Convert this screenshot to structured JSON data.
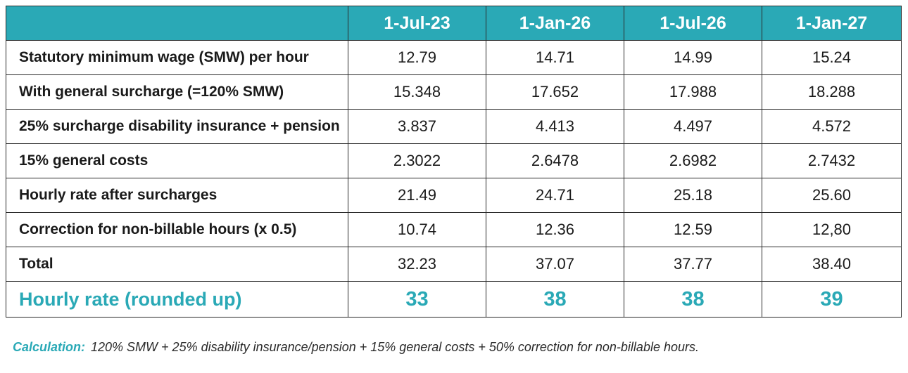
{
  "table": {
    "columns": [
      "",
      "1-Jul-23",
      "1-Jan-26",
      "1-Jul-26",
      "1-Jan-27"
    ],
    "rows": [
      {
        "label": "Statutory minimum wage (SMW) per hour",
        "values": [
          "12.79",
          "14.71",
          "14.99",
          "15.24"
        ]
      },
      {
        "label": "With general surcharge (=120% SMW)",
        "values": [
          "15.348",
          "17.652",
          "17.988",
          "18.288"
        ]
      },
      {
        "label": "25% surcharge disability insurance + pension",
        "values": [
          "3.837",
          "4.413",
          "4.497",
          "4.572"
        ]
      },
      {
        "label": "15% general costs",
        "values": [
          "2.3022",
          "2.6478",
          "2.6982",
          "2.7432"
        ]
      },
      {
        "label": "Hourly rate after surcharges",
        "values": [
          "21.49",
          "24.71",
          "25.18",
          "25.60"
        ]
      },
      {
        "label": "Correction for non-billable hours (x 0.5)",
        "values": [
          "10.74",
          "12.36",
          "12.59",
          "12,80"
        ]
      },
      {
        "label": "Total",
        "values": [
          "32.23",
          "37.07",
          "37.77",
          "38.40"
        ]
      }
    ],
    "final_row": {
      "label": "Hourly rate (rounded up)",
      "values": [
        "33",
        "38",
        "38",
        "39"
      ]
    }
  },
  "note": {
    "lead": "Calculation:",
    "text": "120% SMW + 25% disability insurance/pension + 15% general costs + 50% correction for non-billable hours."
  },
  "colors": {
    "accent": "#2aa9b6",
    "header_text": "#ffffff",
    "border": "#2a2a2a"
  }
}
